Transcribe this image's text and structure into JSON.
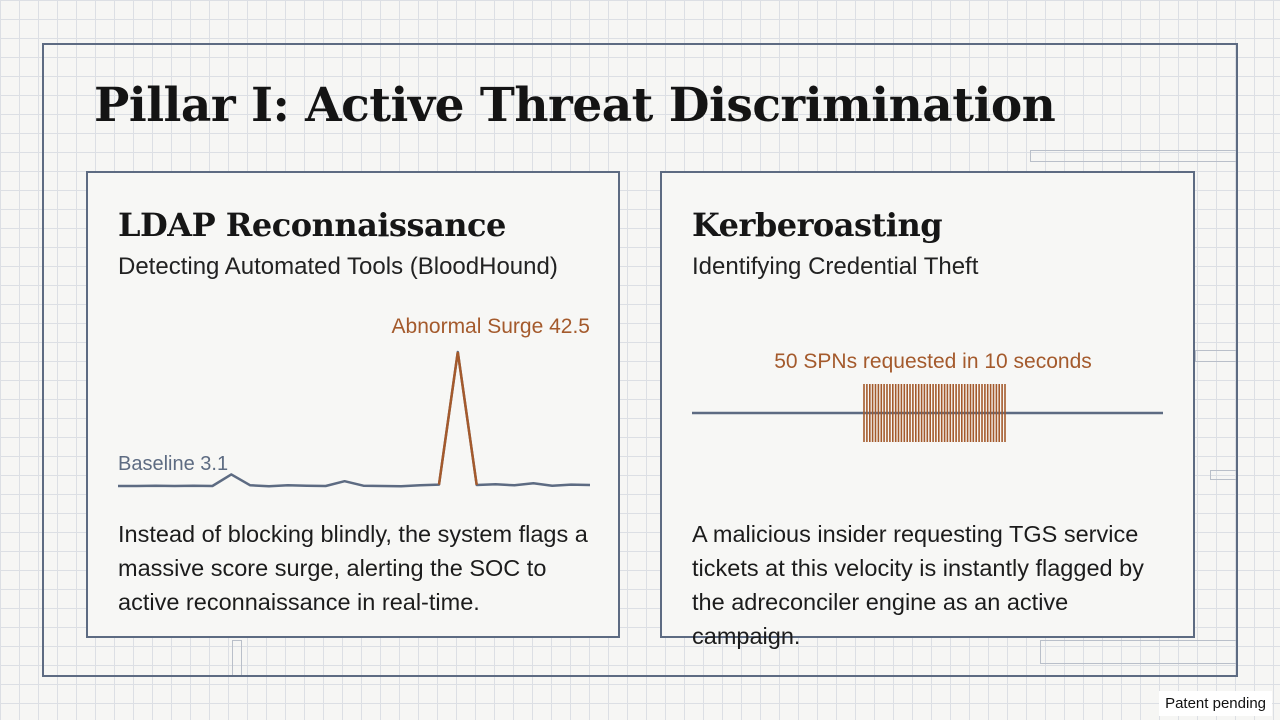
{
  "title": "Pillar I: Active Threat Discrimination",
  "footer": {
    "patent": "Patent pending"
  },
  "colors": {
    "accent": "#a45a2c",
    "baseline": "#5d6b82"
  },
  "cards": [
    {
      "title": "LDAP Reconnaissance",
      "subtitle": "Detecting Automated Tools (BloodHound)",
      "body": "Instead of blocking blindly, the system flags a massive score surge, alerting the SOC to active reconnaissance in real-time.",
      "chart_data": {
        "type": "line",
        "series": [
          {
            "name": "Baseline",
            "values": [
              3.1,
              3.1,
              3.2,
              3.1,
              3.2,
              3.1,
              6.5,
              3.3,
              3.0,
              3.3,
              3.2,
              3.1,
              4.5,
              3.2,
              3.1,
              3.0,
              3.3,
              3.5,
              42.5,
              3.4,
              3.6,
              3.3,
              3.9,
              3.2,
              3.5,
              3.4
            ]
          }
        ],
        "annotations": [
          {
            "label": "Abnormal Surge 42.5",
            "value": 42.5
          },
          {
            "label": "Baseline 3.1",
            "value": 3.1
          }
        ]
      }
    },
    {
      "title": "Kerberoasting",
      "subtitle": "Identifying Credential Theft",
      "body": "A malicious insider requesting TGS service tickets at this velocity is instantly flagged by the adreconciler engine as an active campaign.",
      "chart_data": {
        "type": "timeline",
        "annotation": "50 SPNs requested in 10 seconds",
        "burst_count": 50,
        "burst_seconds": 10
      }
    }
  ]
}
